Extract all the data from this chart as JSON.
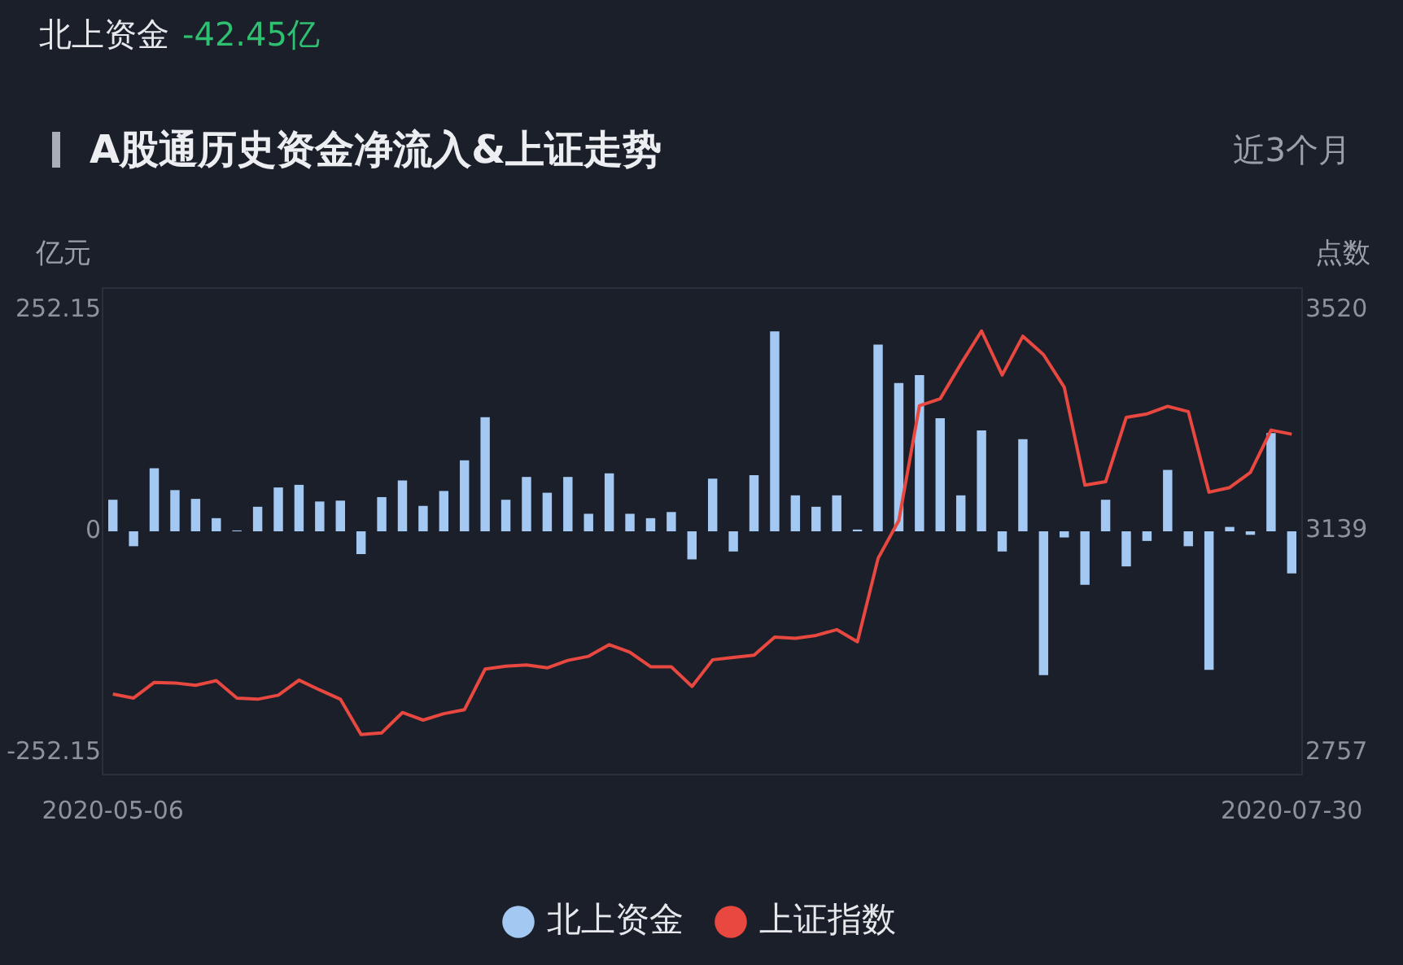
{
  "chart_data": {
    "type": "bar",
    "title": "A股通历史资金净流入&上证走势",
    "ylabel": "亿元",
    "y2label": "点数",
    "annotations": [
      "北上资金",
      "-42.45亿",
      "近3个月"
    ],
    "categories": [
      "2020-05-06",
      null,
      null,
      null,
      null,
      null,
      null,
      null,
      null,
      null,
      null,
      null,
      null,
      null,
      null,
      null,
      null,
      null,
      null,
      null,
      null,
      null,
      null,
      null,
      null,
      null,
      null,
      null,
      null,
      null,
      null,
      null,
      null,
      null,
      null,
      null,
      null,
      null,
      null,
      null,
      null,
      null,
      null,
      null,
      null,
      null,
      null,
      null,
      null,
      null,
      null,
      null,
      null,
      null,
      null,
      null,
      null,
      "2020-07-30"
    ],
    "series": [
      {
        "name": "北上资金",
        "color": "#a3c8f2",
        "values": [
          36,
          -17,
          72,
          47,
          37,
          15,
          1,
          28,
          50,
          53,
          34,
          35,
          -26,
          39,
          58,
          29,
          46,
          81,
          130,
          36,
          62,
          44,
          62,
          20,
          66,
          20,
          15,
          22,
          -32,
          60,
          -23,
          64,
          228,
          41,
          28,
          41,
          2,
          213,
          169,
          178,
          129,
          41,
          115,
          -23,
          105,
          -164,
          -7,
          -61,
          36,
          -40,
          -11,
          70,
          -17,
          -158,
          5,
          -4,
          112,
          -48
        ]
      },
      {
        "name": "上证指数",
        "type": "line",
        "axis": "y2",
        "color": "#e8483f",
        "values": [
          2858,
          2851,
          2878,
          2877,
          2873,
          2881,
          2851,
          2849,
          2856,
          2882,
          2865,
          2849,
          2788,
          2791,
          2826,
          2813,
          2824,
          2831,
          2901,
          2906,
          2908,
          2903,
          2916,
          2923,
          2943,
          2930,
          2905,
          2905,
          2871,
          2917,
          2921,
          2925,
          2956,
          2954,
          2959,
          2969,
          2948,
          3092,
          3157,
          3355,
          3367,
          3427,
          3484,
          3408,
          3475,
          3443,
          3387,
          3218,
          3224,
          3335,
          3341,
          3354,
          3345,
          3206,
          3214,
          3240,
          3313,
          3306
        ]
      }
    ],
    "ylim": [
      -277.37,
      277.37
    ],
    "yticks": [
      -252.15,
      0,
      252.15
    ],
    "y2lim": [
      2719,
      3558
    ],
    "y2ticks": [
      2757,
      3139,
      3520
    ],
    "grid": false,
    "legend": "bottom",
    "marker": "none"
  }
}
